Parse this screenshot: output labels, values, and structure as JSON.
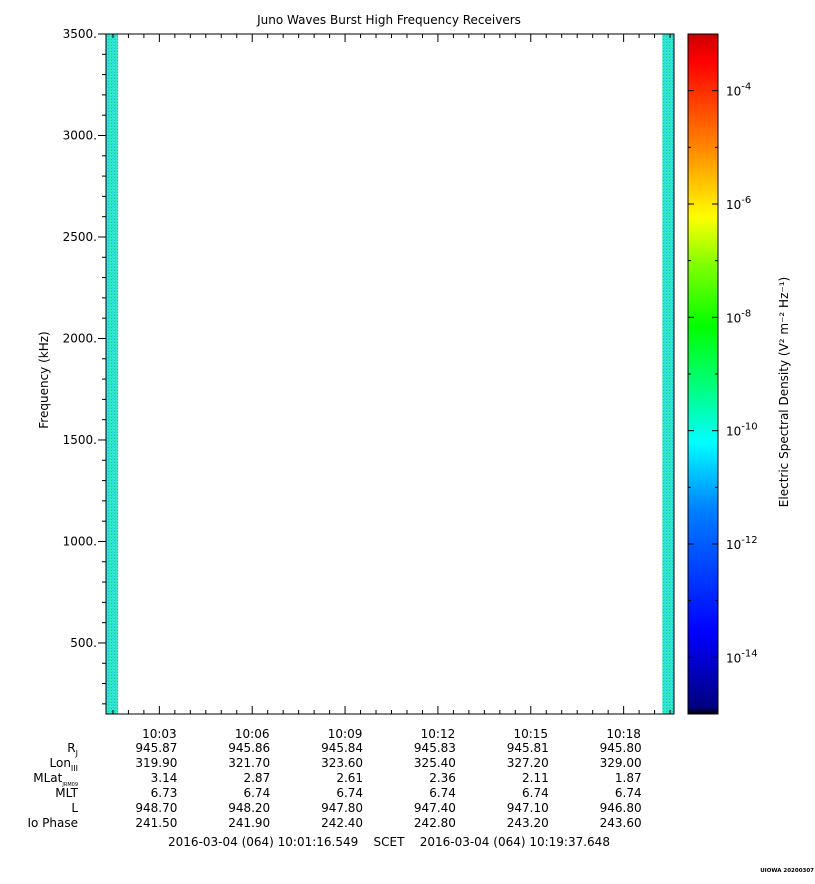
{
  "chart_data": {
    "type": "heatmap",
    "title": "Juno Waves Burst High Frequency Receivers",
    "ylabel": "Frequency (kHz)",
    "ylim": [
      150,
      3500
    ],
    "y_ticks": [
      500,
      1000,
      1500,
      2000,
      2500,
      3000,
      3500
    ],
    "y_tick_labels": [
      "500.",
      "1000.",
      "1500.",
      "2000.",
      "2500.",
      "3000.",
      "3500."
    ],
    "x_start": "2016-03-04 10:01:16.549",
    "x_end": "2016-03-04 10:19:37.648",
    "x_tick_labels": [
      "10:03",
      "10:06",
      "10:09",
      "10:12",
      "10:15",
      "10:18"
    ],
    "x_tick_times": [
      "10:03:00",
      "10:06:00",
      "10:09:00",
      "10:12:00",
      "10:15:00",
      "10:18:00"
    ],
    "data_coverage": [
      {
        "start": "10:01:16.549",
        "end": "10:01:40",
        "level_log10": -11.4
      },
      {
        "start": "10:19:15",
        "end": "10:19:37.648",
        "level_log10": -11.4
      }
    ],
    "colorbar": {
      "label": "Electric Spectral Density (V² m⁻² Hz⁻¹)",
      "scale": "log",
      "range_log10": [
        -15,
        -3
      ],
      "tick_exponents": [
        -14,
        -12,
        -10,
        -8,
        -6,
        -4
      ],
      "tick_labels": [
        "10",
        "10",
        "10",
        "10",
        "10",
        "10"
      ],
      "tick_sup": [
        "-14",
        "-12",
        "-10",
        "-8",
        "-6",
        "-4"
      ],
      "colors": [
        "#000000",
        "#00007f",
        "#0000ff",
        "#007fff",
        "#00ffff",
        "#00ff7f",
        "#00ff00",
        "#7fff00",
        "#ffff00",
        "#ff7f00",
        "#ff0000",
        "#cc0000"
      ]
    },
    "ephemeris": {
      "labels": [
        "R",
        "Lon",
        "MLat",
        "MLT",
        "L",
        "Io Phase"
      ],
      "subscripts": [
        "J",
        "III",
        "JRM09",
        "",
        "",
        ""
      ],
      "rows": [
        [
          "945.87",
          "945.86",
          "945.84",
          "945.83",
          "945.81",
          "945.80"
        ],
        [
          "319.90",
          "321.70",
          "323.60",
          "325.40",
          "327.20",
          "329.00"
        ],
        [
          "3.14",
          "2.87",
          "2.61",
          "2.36",
          "2.11",
          "1.87"
        ],
        [
          "6.73",
          "6.74",
          "6.74",
          "6.74",
          "6.74",
          "6.74"
        ],
        [
          "948.70",
          "948.20",
          "947.80",
          "947.40",
          "947.10",
          "946.80"
        ],
        [
          "241.50",
          "241.90",
          "242.40",
          "242.80",
          "243.20",
          "243.60"
        ]
      ]
    },
    "time_range_text": "2016-03-04 (064) 10:01:16.549    SCET    2016-03-04 (064) 10:19:37.648",
    "credit": "UIOWA 20200307"
  }
}
